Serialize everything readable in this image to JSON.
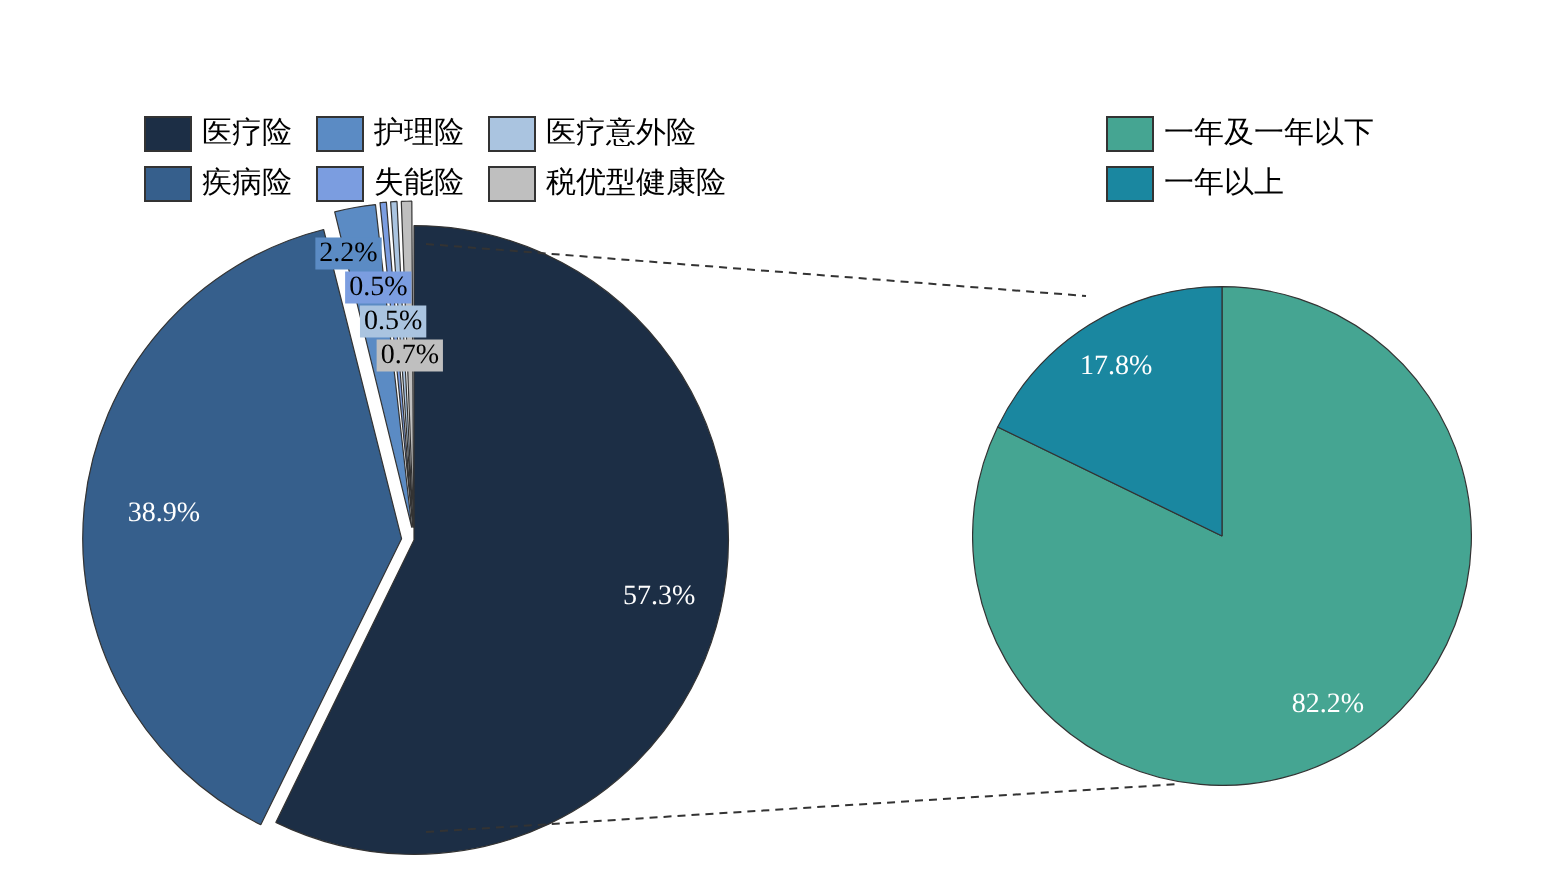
{
  "chart_data": [
    {
      "type": "pie",
      "categories": [
        "医疗险",
        "疾病险",
        "护理险",
        "失能险",
        "医疗意外险",
        "税优型健康险"
      ],
      "values": [
        57.3,
        38.9,
        2.2,
        0.5,
        0.5,
        0.7
      ],
      "colors": [
        "#1c2e45",
        "#365f8c",
        "#5b8bc4",
        "#7b9de0",
        "#aac4e0",
        "#bfbfbf"
      ],
      "value_labels": [
        "57.3%",
        "38.9%",
        "2.2%",
        "0.5%",
        "0.5%",
        "0.7%"
      ],
      "legend": "top left"
    },
    {
      "type": "pie",
      "categories": [
        "一年及一年以下",
        "一年以上"
      ],
      "values": [
        82.2,
        17.8
      ],
      "colors": [
        "#45a592",
        "#1a87a0"
      ],
      "value_labels": [
        "82.2%",
        "17.8%"
      ],
      "legend": "top right"
    }
  ]
}
